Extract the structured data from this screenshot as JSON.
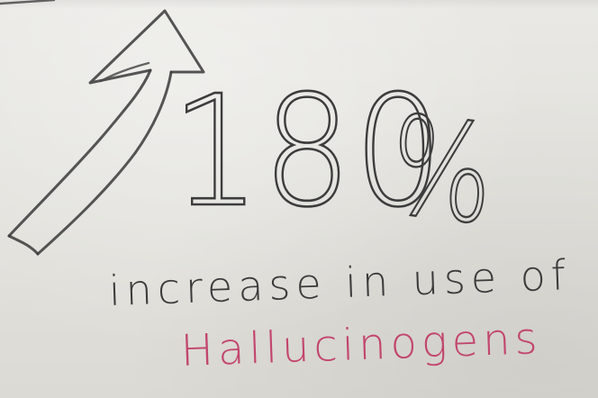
{
  "card": {
    "headline_number": "180",
    "headline_symbol": "%",
    "caption": "increase in use of",
    "drug_name": "Hallucinogens"
  },
  "colors": {
    "paper": "#e4e3de",
    "pencil": "#3c3c3c",
    "pink_marker": "#c2466e"
  },
  "icons": {
    "arrow": "upward-arrow-icon"
  }
}
